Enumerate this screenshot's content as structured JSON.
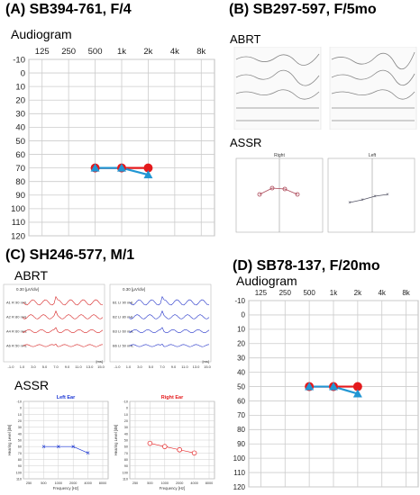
{
  "panels": {
    "A": {
      "title": "(A) SB394-761, F/4",
      "subtitle": "Audiogram"
    },
    "B": {
      "title": "(B) SB297-597, F/5mo",
      "abrt_label": "ABRT",
      "assr_label": "ASSR",
      "assr_left_header": "Right",
      "assr_right_header": "Left"
    },
    "C": {
      "title": "(C) SH246-577, M/1",
      "abrt_label": "ABRT",
      "assr_label": "ASSR",
      "left_ear_title": "Left Ear",
      "right_ear_title": "Right Ear",
      "x_axis_label": "Frequency [Hz]",
      "y_axis_label": "Hearing Level [dB]",
      "abrt_x_label": "[ms]",
      "abrt_y_label": "0.30 [µV/div]"
    },
    "D": {
      "title": "(D) SB78-137, F/20mo",
      "subtitle": "Audiogram"
    }
  },
  "chart_data": [
    {
      "id": "A",
      "type": "line",
      "x_labels": [
        "125",
        "250",
        "500",
        "1k",
        "2k",
        "4k",
        "8k"
      ],
      "y_labels": [
        "-10",
        "0",
        "10",
        "20",
        "30",
        "40",
        "50",
        "60",
        "70",
        "80",
        "90",
        "100",
        "110",
        "120"
      ],
      "ylim": [
        -10,
        120
      ],
      "y_inverted": true,
      "series": [
        {
          "marker": "circle",
          "color": "#e41a1c",
          "x": [
            "500",
            "1k",
            "2k"
          ],
          "values": [
            70,
            70,
            70
          ]
        },
        {
          "marker": "triangle",
          "color": "#2196d3",
          "x": [
            "500",
            "1k",
            "2k"
          ],
          "values": [
            70,
            70,
            75
          ]
        }
      ]
    },
    {
      "id": "D",
      "type": "line",
      "x_labels": [
        "125",
        "250",
        "500",
        "1k",
        "2k",
        "4k",
        "8k"
      ],
      "y_labels": [
        "-10",
        "0",
        "10",
        "20",
        "30",
        "40",
        "50",
        "60",
        "70",
        "80",
        "90",
        "100",
        "110",
        "120"
      ],
      "ylim": [
        -10,
        120
      ],
      "y_inverted": true,
      "series": [
        {
          "marker": "circle",
          "color": "#e41a1c",
          "x": [
            "500",
            "1k",
            "2k"
          ],
          "values": [
            50,
            50,
            50
          ]
        },
        {
          "marker": "triangle",
          "color": "#2196d3",
          "x": [
            "500",
            "1k",
            "2k"
          ],
          "values": [
            50,
            50,
            55
          ]
        }
      ]
    },
    {
      "id": "C-assr-left",
      "type": "line",
      "title": "Left Ear",
      "x_labels": [
        "250",
        "500",
        "1000",
        "2000",
        "4000",
        "8000"
      ],
      "y_labels": [
        "-10",
        "0",
        "10",
        "20",
        "30",
        "40",
        "50",
        "60",
        "70",
        "80",
        "90",
        "100",
        "110"
      ],
      "series": [
        {
          "marker": "x",
          "color": "#1a35d4",
          "x": [
            "500",
            "1000",
            "2000",
            "4000"
          ],
          "values": [
            60,
            60,
            60,
            70
          ]
        }
      ]
    },
    {
      "id": "C-assr-right",
      "type": "line",
      "title": "Right Ear",
      "x_labels": [
        "250",
        "500",
        "1000",
        "2000",
        "4000",
        "8000"
      ],
      "y_labels": [
        "-10",
        "0",
        "10",
        "20",
        "30",
        "40",
        "50",
        "60",
        "70",
        "80",
        "90",
        "100",
        "110"
      ],
      "series": [
        {
          "marker": "circle",
          "color": "#e41a1c",
          "x": [
            "500",
            "1000",
            "2000",
            "4000"
          ],
          "values": [
            55,
            60,
            65,
            70
          ]
        }
      ]
    }
  ],
  "abrt_c": {
    "left_traces": [
      {
        "label": "A1 R 90 nHL",
        "color": "#d62020"
      },
      {
        "label": "A2 R 80 nHL",
        "color": "#d62020"
      },
      {
        "label": "A4 R 60 nHL",
        "color": "#d62020"
      },
      {
        "label": "A6 R 50 nHL",
        "color": "#d62020"
      }
    ],
    "right_traces": [
      {
        "label": "B1 LI 90 nHL",
        "color": "#2030c8"
      },
      {
        "label": "B2 LI 80 nHL",
        "color": "#2030c8"
      },
      {
        "label": "B3 LI 60 nHL",
        "color": "#2030c8"
      },
      {
        "label": "B6 LI 50 nHL",
        "color": "#2030c8"
      }
    ],
    "x_ticks": [
      "-1.0",
      "1.0",
      "3.0",
      "5.0",
      "7.0",
      "9.0",
      "11.0",
      "13.0",
      "15.0"
    ]
  }
}
